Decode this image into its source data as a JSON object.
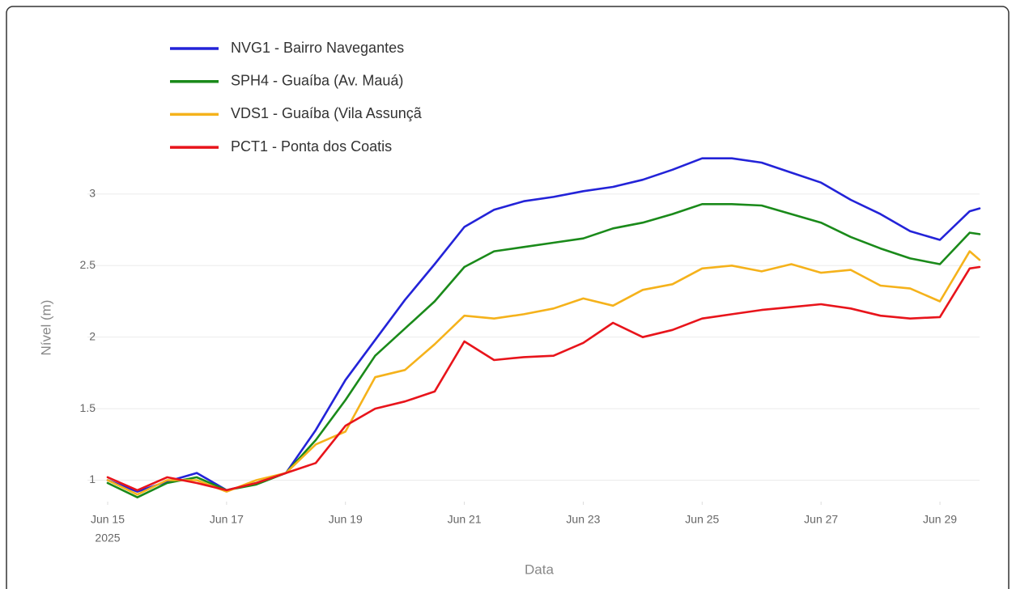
{
  "chart_data": {
    "type": "line",
    "x_label": "Data",
    "y_label": "Nível (m)",
    "x": [
      "2025-06-15T00:00",
      "2025-06-15T12:00",
      "2025-06-16T00:00",
      "2025-06-16T12:00",
      "2025-06-17T00:00",
      "2025-06-17T12:00",
      "2025-06-18T00:00",
      "2025-06-18T12:00",
      "2025-06-19T00:00",
      "2025-06-19T12:00",
      "2025-06-20T00:00",
      "2025-06-20T12:00",
      "2025-06-21T00:00",
      "2025-06-21T12:00",
      "2025-06-22T00:00",
      "2025-06-22T12:00",
      "2025-06-23T00:00",
      "2025-06-23T12:00",
      "2025-06-24T00:00",
      "2025-06-24T12:00",
      "2025-06-25T00:00",
      "2025-06-25T12:00",
      "2025-06-26T00:00",
      "2025-06-26T12:00",
      "2025-06-27T00:00",
      "2025-06-27T12:00",
      "2025-06-28T00:00",
      "2025-06-28T12:00",
      "2025-06-29T00:00",
      "2025-06-29T12:00",
      "2025-06-29T16:00"
    ],
    "series": [
      {
        "name": "NVG1 - Bairro Navegantes",
        "color": "#2323d8",
        "values": [
          1.0,
          0.92,
          0.99,
          1.05,
          0.93,
          0.98,
          1.05,
          1.35,
          1.7,
          1.98,
          2.26,
          2.51,
          2.77,
          2.89,
          2.95,
          2.98,
          3.02,
          3.05,
          3.1,
          3.17,
          3.25,
          3.25,
          3.22,
          3.15,
          3.08,
          2.96,
          2.86,
          2.74,
          2.68,
          2.88,
          2.9
        ]
      },
      {
        "name": "SPH4 - Guaíba (Av. Mauá)",
        "color": "#1a8a1a",
        "values": [
          0.98,
          0.88,
          0.98,
          1.02,
          0.93,
          0.97,
          1.05,
          1.28,
          1.56,
          1.87,
          2.06,
          2.25,
          2.49,
          2.6,
          2.63,
          2.66,
          2.69,
          2.76,
          2.8,
          2.86,
          2.93,
          2.93,
          2.92,
          2.86,
          2.8,
          2.7,
          2.62,
          2.55,
          2.51,
          2.73,
          2.72
        ]
      },
      {
        "name": "VDS1 - Guaíba (Vila Assunçã",
        "color": "#f5b21b",
        "values": [
          1.0,
          0.9,
          1.0,
          1.0,
          0.92,
          1.0,
          1.05,
          1.25,
          1.34,
          1.72,
          1.77,
          1.95,
          2.15,
          2.13,
          2.16,
          2.2,
          2.27,
          2.22,
          2.33,
          2.37,
          2.48,
          2.5,
          2.46,
          2.51,
          2.45,
          2.47,
          2.36,
          2.34,
          2.25,
          2.6,
          2.54
        ]
      },
      {
        "name": "PCT1 - Ponta dos Coatis",
        "color": "#e8141b",
        "values": [
          1.02,
          0.93,
          1.02,
          0.98,
          0.93,
          0.98,
          1.05,
          1.12,
          1.38,
          1.5,
          1.55,
          1.62,
          1.97,
          1.84,
          1.86,
          1.87,
          1.96,
          2.1,
          2.0,
          2.05,
          2.13,
          2.16,
          2.19,
          2.21,
          2.23,
          2.2,
          2.15,
          2.13,
          2.14,
          2.48,
          2.49
        ]
      }
    ],
    "xlim": [
      "2025-06-15T00:00",
      "2025-06-29T16:00"
    ],
    "xticks": [
      {
        "value": "2025-06-15T00:00",
        "label": "Jun 15",
        "sublabel": "2025"
      },
      {
        "value": "2025-06-17T00:00",
        "label": "Jun 17"
      },
      {
        "value": "2025-06-19T00:00",
        "label": "Jun 19"
      },
      {
        "value": "2025-06-21T00:00",
        "label": "Jun 21"
      },
      {
        "value": "2025-06-23T00:00",
        "label": "Jun 23"
      },
      {
        "value": "2025-06-25T00:00",
        "label": "Jun 25"
      },
      {
        "value": "2025-06-27T00:00",
        "label": "Jun 27"
      },
      {
        "value": "2025-06-29T00:00",
        "label": "Jun 29"
      }
    ],
    "ylim": [
      0.85,
      3.35
    ],
    "yticks": [
      1,
      1.5,
      2,
      2.5,
      3
    ],
    "grid": true,
    "legend": "top-left"
  }
}
